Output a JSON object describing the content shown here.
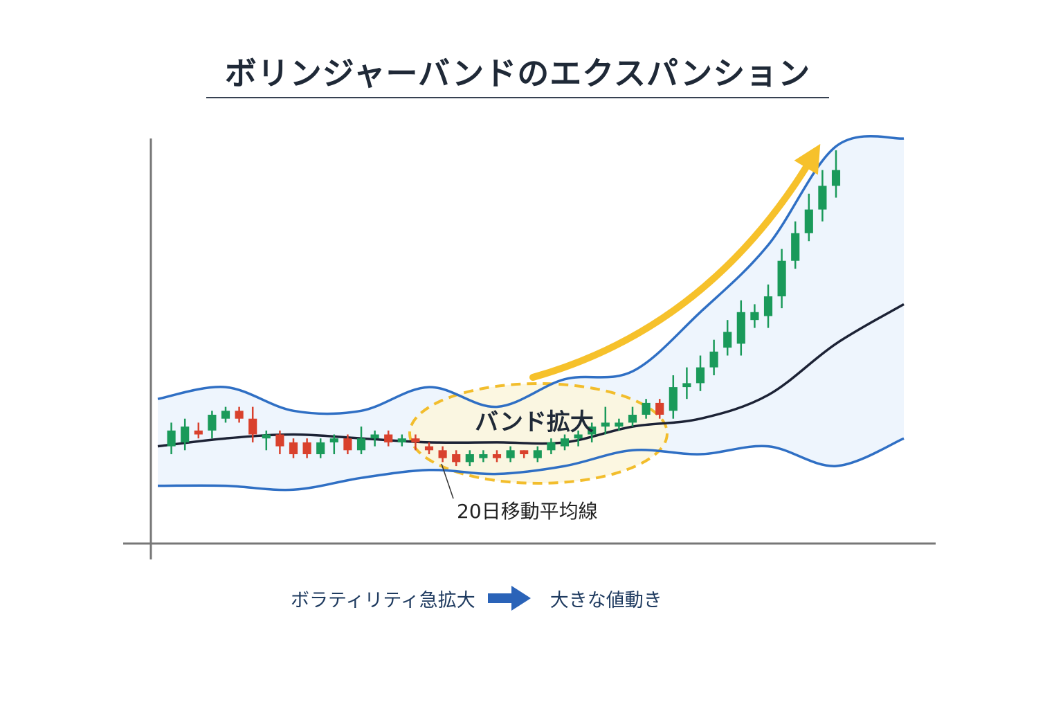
{
  "title": "ボリンジャーバンドのエクスパンション",
  "caption": {
    "left": "ボラティリティ急拡大",
    "arrow_icon": "right-arrow-icon",
    "right": "大きな値動き"
  },
  "colors": {
    "band": "#2f6fc4",
    "band_fill": "#eef5fd",
    "ma": "#1c2235",
    "bull": "#1a9a5a",
    "bear": "#d9412d",
    "arrow": "#f6c12b",
    "axis": "#777777",
    "highlight_fill": "#fbf6dc",
    "highlight_stroke": "#f2bd2c"
  },
  "chart_data": {
    "type": "candlestick",
    "title": "ボリンジャーバンドのエクスパンション",
    "annotations": {
      "expansion_label": "バンド拡大",
      "ma_label": "20日移動平均線"
    },
    "xlim": [
      0,
      55
    ],
    "ylim": [
      0,
      100
    ],
    "band_x": [
      0,
      5,
      10,
      15,
      20,
      25,
      30,
      35,
      40,
      45,
      50,
      55
    ],
    "upper_band": [
      34,
      37,
      31,
      31,
      37,
      32,
      39,
      41,
      56,
      73,
      98,
      100
    ],
    "middle_band": [
      22,
      24,
      25,
      24,
      23,
      23,
      23,
      27,
      29,
      35,
      48,
      58
    ],
    "lower_band": [
      12,
      12,
      11,
      14,
      16,
      15,
      17,
      21,
      20,
      22,
      17,
      24
    ],
    "candles": [
      {
        "x": 1,
        "o": 22,
        "c": 26,
        "h": 28,
        "l": 20,
        "dir": "up"
      },
      {
        "x": 2,
        "o": 23,
        "c": 27,
        "h": 29,
        "l": 21,
        "dir": "up"
      },
      {
        "x": 3,
        "o": 26,
        "c": 25,
        "h": 28,
        "l": 24,
        "dir": "down"
      },
      {
        "x": 4,
        "o": 26,
        "c": 30,
        "h": 31,
        "l": 24,
        "dir": "up"
      },
      {
        "x": 5,
        "o": 29,
        "c": 31,
        "h": 32,
        "l": 28,
        "dir": "up"
      },
      {
        "x": 6,
        "o": 31,
        "c": 29,
        "h": 32,
        "l": 28,
        "dir": "down"
      },
      {
        "x": 7,
        "o": 29,
        "c": 25,
        "h": 32,
        "l": 23,
        "dir": "down"
      },
      {
        "x": 8,
        "o": 24,
        "c": 25,
        "h": 26,
        "l": 21,
        "dir": "up"
      },
      {
        "x": 9,
        "o": 25,
        "c": 22,
        "h": 26,
        "l": 20,
        "dir": "down"
      },
      {
        "x": 10,
        "o": 23,
        "c": 20,
        "h": 24,
        "l": 19,
        "dir": "down"
      },
      {
        "x": 11,
        "o": 23,
        "c": 20,
        "h": 24,
        "l": 19,
        "dir": "down"
      },
      {
        "x": 12,
        "o": 20,
        "c": 23,
        "h": 24,
        "l": 19,
        "dir": "up"
      },
      {
        "x": 13,
        "o": 23,
        "c": 24,
        "h": 25,
        "l": 20,
        "dir": "up"
      },
      {
        "x": 14,
        "o": 24,
        "c": 21,
        "h": 25,
        "l": 20,
        "dir": "down"
      },
      {
        "x": 15,
        "o": 21,
        "c": 24,
        "h": 27,
        "l": 20,
        "dir": "up"
      },
      {
        "x": 16,
        "o": 24,
        "c": 25,
        "h": 26,
        "l": 22,
        "dir": "up"
      },
      {
        "x": 17,
        "o": 25,
        "c": 23,
        "h": 26,
        "l": 22,
        "dir": "down"
      },
      {
        "x": 18,
        "o": 23,
        "c": 24,
        "h": 25,
        "l": 22,
        "dir": "up"
      },
      {
        "x": 19,
        "o": 24,
        "c": 23,
        "h": 25,
        "l": 21,
        "dir": "down"
      },
      {
        "x": 20,
        "o": 22,
        "c": 21,
        "h": 23,
        "l": 20,
        "dir": "down"
      },
      {
        "x": 21,
        "o": 21,
        "c": 19,
        "h": 22,
        "l": 18,
        "dir": "down"
      },
      {
        "x": 22,
        "o": 20,
        "c": 18,
        "h": 21,
        "l": 17,
        "dir": "down"
      },
      {
        "x": 23,
        "o": 18,
        "c": 20,
        "h": 21,
        "l": 17,
        "dir": "up"
      },
      {
        "x": 24,
        "o": 19,
        "c": 20,
        "h": 21,
        "l": 18,
        "dir": "up"
      },
      {
        "x": 25,
        "o": 20,
        "c": 19,
        "h": 21,
        "l": 18,
        "dir": "down"
      },
      {
        "x": 26,
        "o": 19,
        "c": 21,
        "h": 22,
        "l": 18,
        "dir": "up"
      },
      {
        "x": 27,
        "o": 21,
        "c": 20,
        "h": 21,
        "l": 19,
        "dir": "down"
      },
      {
        "x": 28,
        "o": 19,
        "c": 21,
        "h": 22,
        "l": 18,
        "dir": "up"
      },
      {
        "x": 29,
        "o": 21,
        "c": 23,
        "h": 24,
        "l": 20,
        "dir": "up"
      },
      {
        "x": 30,
        "o": 22,
        "c": 24,
        "h": 25,
        "l": 21,
        "dir": "up"
      },
      {
        "x": 31,
        "o": 24,
        "c": 25,
        "h": 26,
        "l": 22,
        "dir": "up"
      },
      {
        "x": 32,
        "o": 25,
        "c": 27,
        "h": 28,
        "l": 23,
        "dir": "up"
      },
      {
        "x": 33,
        "o": 27,
        "c": 28,
        "h": 32,
        "l": 25,
        "dir": "up"
      },
      {
        "x": 34,
        "o": 27,
        "c": 28,
        "h": 29,
        "l": 26,
        "dir": "up"
      },
      {
        "x": 35,
        "o": 28,
        "c": 30,
        "h": 32,
        "l": 27,
        "dir": "up"
      },
      {
        "x": 36,
        "o": 30,
        "c": 33,
        "h": 34,
        "l": 29,
        "dir": "up"
      },
      {
        "x": 37,
        "o": 33,
        "c": 30,
        "h": 34,
        "l": 29,
        "dir": "down"
      },
      {
        "x": 38,
        "o": 31,
        "c": 37,
        "h": 40,
        "l": 29,
        "dir": "up"
      },
      {
        "x": 39,
        "o": 37,
        "c": 38,
        "h": 42,
        "l": 34,
        "dir": "up"
      },
      {
        "x": 40,
        "o": 38,
        "c": 42,
        "h": 45,
        "l": 36,
        "dir": "up"
      },
      {
        "x": 41,
        "o": 42,
        "c": 46,
        "h": 49,
        "l": 40,
        "dir": "up"
      },
      {
        "x": 42,
        "o": 47,
        "c": 51,
        "h": 54,
        "l": 45,
        "dir": "up"
      },
      {
        "x": 43,
        "o": 48,
        "c": 56,
        "h": 59,
        "l": 45,
        "dir": "up"
      },
      {
        "x": 44,
        "o": 54,
        "c": 56,
        "h": 58,
        "l": 52,
        "dir": "up"
      },
      {
        "x": 45,
        "o": 55,
        "c": 60,
        "h": 63,
        "l": 52,
        "dir": "up"
      },
      {
        "x": 46,
        "o": 60,
        "c": 69,
        "h": 72,
        "l": 57,
        "dir": "up"
      },
      {
        "x": 47,
        "o": 69,
        "c": 76,
        "h": 79,
        "l": 67,
        "dir": "up"
      },
      {
        "x": 48,
        "o": 76,
        "c": 82,
        "h": 86,
        "l": 74,
        "dir": "up"
      },
      {
        "x": 49,
        "o": 82,
        "c": 88,
        "h": 92,
        "l": 79,
        "dir": "up"
      },
      {
        "x": 50,
        "o": 88,
        "c": 92,
        "h": 97,
        "l": 85,
        "dir": "up"
      }
    ]
  }
}
